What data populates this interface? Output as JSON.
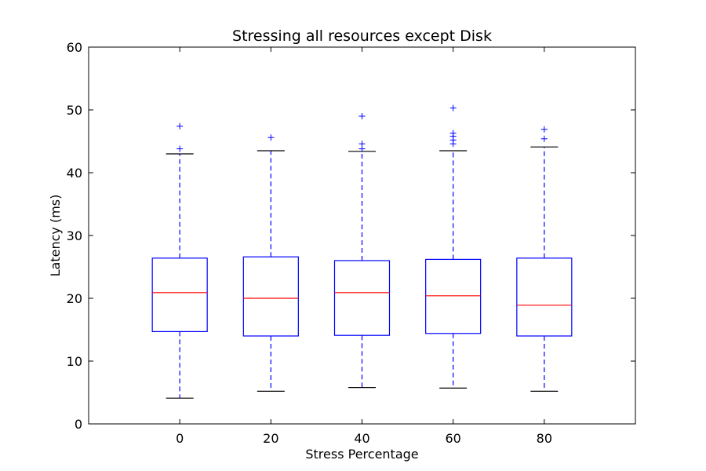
{
  "chart_data": {
    "type": "box",
    "title": "Stressing all resources except Disk",
    "xlabel": "Stress Percentage",
    "ylabel": "Latency (ms)",
    "ylim": [
      0,
      60
    ],
    "yticks": [
      0,
      10,
      20,
      30,
      40,
      50,
      60
    ],
    "grid": false,
    "colors": {
      "box": "#0000ff",
      "median": "#ff0000",
      "cap": "#000000",
      "flier": "#0000ff",
      "axes": "#000000"
    },
    "boxes": [
      {
        "category": "0",
        "whisker_low": 4.1,
        "q1": 14.7,
        "median": 20.9,
        "q3": 26.4,
        "whisker_high": 43.0,
        "fliers": [
          43.8,
          47.4
        ]
      },
      {
        "category": "20",
        "whisker_low": 5.2,
        "q1": 14.0,
        "median": 20.0,
        "q3": 26.6,
        "whisker_high": 43.5,
        "fliers": [
          45.6
        ]
      },
      {
        "category": "40",
        "whisker_low": 5.8,
        "q1": 14.1,
        "median": 20.9,
        "q3": 26.0,
        "whisker_high": 43.4,
        "fliers": [
          43.8,
          44.6,
          49.0
        ]
      },
      {
        "category": "60",
        "whisker_low": 5.7,
        "q1": 14.4,
        "median": 20.4,
        "q3": 26.2,
        "whisker_high": 43.5,
        "fliers": [
          44.6,
          45.2,
          45.8,
          46.3,
          50.3
        ]
      },
      {
        "category": "80",
        "whisker_low": 5.2,
        "q1": 14.0,
        "median": 18.9,
        "q3": 26.4,
        "whisker_high": 44.1,
        "fliers": [
          45.4,
          46.9
        ]
      }
    ]
  }
}
